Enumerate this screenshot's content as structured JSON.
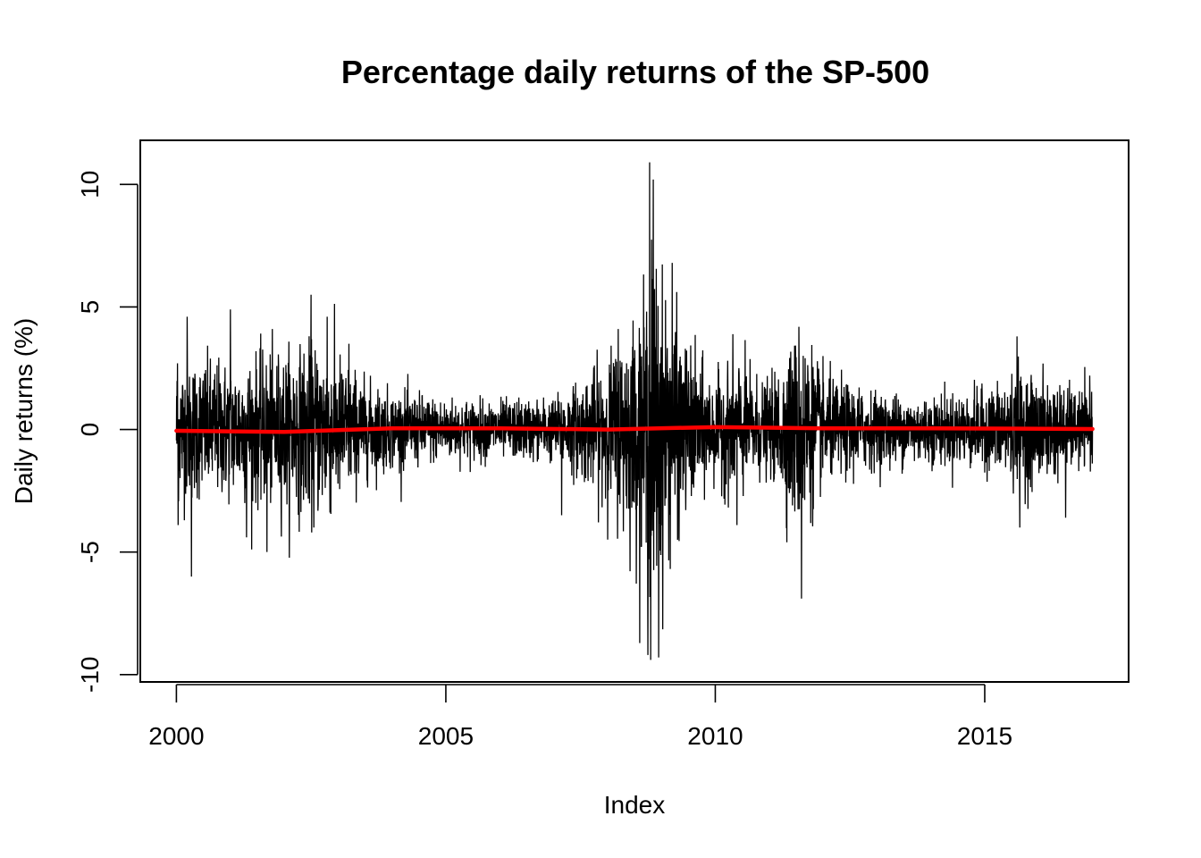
{
  "chart_data": {
    "type": "line",
    "title": "Percentage daily returns of the SP-500",
    "xlabel": "Index",
    "ylabel": "Daily returns (%)",
    "xlim": [
      1999.33,
      2017.67
    ],
    "ylim": [
      -10.3,
      11.8
    ],
    "x_ticks": [
      2000,
      2005,
      2010,
      2015
    ],
    "x_tick_labels": [
      "2000",
      "2005",
      "2010",
      "2015"
    ],
    "y_ticks": [
      -10,
      -5,
      0,
      5,
      10
    ],
    "y_tick_labels": [
      "-10",
      "-5",
      "0",
      "5",
      "10"
    ],
    "grid": false,
    "legend": "none",
    "x_range": [
      2000,
      2017
    ],
    "series": [
      {
        "kind": "daily_returns_line",
        "color": "#000000",
        "volatility_profile": [
          [
            2000.0,
            1.5
          ],
          [
            2001.0,
            1.4
          ],
          [
            2002.0,
            1.6
          ],
          [
            2002.8,
            1.8
          ],
          [
            2003.5,
            1.0
          ],
          [
            2004.0,
            0.8
          ],
          [
            2005.0,
            0.65
          ],
          [
            2006.0,
            0.6
          ],
          [
            2007.0,
            0.65
          ],
          [
            2007.5,
            1.0
          ],
          [
            2008.0,
            1.5
          ],
          [
            2008.7,
            2.6
          ],
          [
            2008.85,
            4.0
          ],
          [
            2009.0,
            3.0
          ],
          [
            2009.4,
            1.8
          ],
          [
            2010.0,
            1.0
          ],
          [
            2010.4,
            1.5
          ],
          [
            2010.7,
            1.1
          ],
          [
            2011.0,
            0.9
          ],
          [
            2011.6,
            2.2
          ],
          [
            2012.0,
            1.1
          ],
          [
            2013.0,
            0.75
          ],
          [
            2014.0,
            0.7
          ],
          [
            2015.0,
            0.8
          ],
          [
            2015.6,
            1.2
          ],
          [
            2016.2,
            1.0
          ],
          [
            2017.0,
            0.7
          ]
        ],
        "extreme_points": [
          [
            2000.02,
            2.7
          ],
          [
            2000.03,
            -3.9
          ],
          [
            2000.2,
            4.6
          ],
          [
            2000.28,
            -6.0
          ],
          [
            2001.0,
            4.9
          ],
          [
            2001.3,
            -4.4
          ],
          [
            2001.68,
            -5.0
          ],
          [
            2002.5,
            5.5
          ],
          [
            2002.55,
            -4.0
          ],
          [
            2002.8,
            4.6
          ],
          [
            2003.2,
            3.5
          ],
          [
            2007.15,
            -3.5
          ],
          [
            2008.2,
            4.1
          ],
          [
            2008.75,
            -9.2
          ],
          [
            2008.78,
            10.9
          ],
          [
            2008.8,
            -9.4
          ],
          [
            2008.85,
            10.2
          ],
          [
            2008.95,
            -9.3
          ],
          [
            2009.2,
            6.8
          ],
          [
            2009.3,
            -4.5
          ],
          [
            2010.4,
            4.3
          ],
          [
            2010.4,
            -3.9
          ],
          [
            2011.6,
            4.6
          ],
          [
            2011.6,
            -6.9
          ],
          [
            2015.6,
            3.8
          ],
          [
            2015.65,
            -4.0
          ],
          [
            2016.5,
            -3.6
          ],
          [
            2016.95,
            2.2
          ]
        ]
      },
      {
        "kind": "trend_line",
        "color": "#ff0000",
        "x": [
          2000,
          2002,
          2004,
          2006,
          2008,
          2010,
          2012,
          2014,
          2017
        ],
        "values": [
          -0.05,
          -0.1,
          0.05,
          0.05,
          0.0,
          0.1,
          0.05,
          0.05,
          0.02
        ]
      }
    ]
  }
}
